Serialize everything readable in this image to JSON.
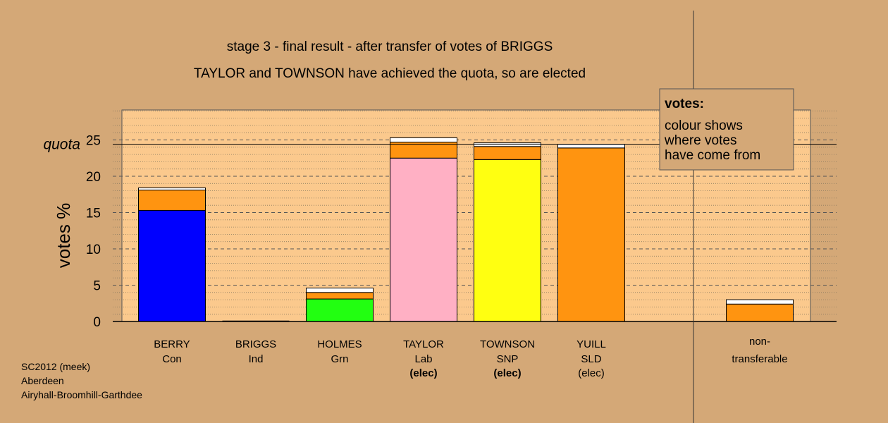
{
  "chart_data": {
    "type": "bar",
    "title": "stage 3 - final result - after transfer of votes of BRIGGS",
    "subtitle": "TAYLOR and TOWNSON have achieved the quota, so are elected",
    "ylabel": "votes %",
    "quota_label": "quota",
    "quota": 24.4,
    "ylim": [
      0,
      29
    ],
    "yticks": [
      "0",
      "5",
      "10",
      "15",
      "20",
      "25"
    ],
    "grid": true,
    "legend": {
      "title": "votes:",
      "lines": [
        "colour shows",
        "where votes",
        "have come from"
      ],
      "placement": "top-right"
    },
    "candidates": [
      {
        "name": "BERRY",
        "party": "Con",
        "status": "",
        "segments": [
          {
            "value": 15.3,
            "color": "#0000ff"
          },
          {
            "value": 2.8,
            "color": "#ff9410"
          },
          {
            "value": 0.3,
            "color": "#ffffff"
          }
        ]
      },
      {
        "name": "BRIGGS",
        "party": "Ind",
        "status": "",
        "segments": []
      },
      {
        "name": "HOLMES",
        "party": "Grn",
        "status": "",
        "segments": [
          {
            "value": 3.1,
            "color": "#22ff11"
          },
          {
            "value": 0.9,
            "color": "#ff9410"
          },
          {
            "value": 0.6,
            "color": "#ffffff"
          }
        ]
      },
      {
        "name": "TAYLOR",
        "party": "Lab",
        "status": "(elec)",
        "segments": [
          {
            "value": 22.5,
            "color": "#ffb0c4"
          },
          {
            "value": 2.2,
            "color": "#ff9410"
          },
          {
            "value": 0.6,
            "color": "#ffffff"
          }
        ]
      },
      {
        "name": "TOWNSON",
        "party": "SNP",
        "status": "(elec)",
        "segments": [
          {
            "value": 22.3,
            "color": "#ffff11"
          },
          {
            "value": 1.8,
            "color": "#ff9410"
          },
          {
            "value": 0.5,
            "color": "#ffffff"
          }
        ]
      },
      {
        "name": "YUILL",
        "party": "SLD",
        "status": "(elec)",
        "segments": [
          {
            "value": 23.9,
            "color": "#ff9410"
          },
          {
            "value": 0.5,
            "color": "#ffffff"
          }
        ]
      }
    ],
    "nontransferable": {
      "line1": "non-",
      "line2": "transferable",
      "segments": [
        {
          "value": 2.4,
          "color": "#ff9410"
        },
        {
          "value": 0.6,
          "color": "#ffffff"
        }
      ]
    }
  },
  "footer": {
    "line1": "SC2012 (meek)",
    "line2": "Aberdeen",
    "line3": "Airyhall-Broomhill-Garthdee"
  },
  "colors": {
    "background": "#d4a877",
    "plot_area": "#fbc98d"
  }
}
